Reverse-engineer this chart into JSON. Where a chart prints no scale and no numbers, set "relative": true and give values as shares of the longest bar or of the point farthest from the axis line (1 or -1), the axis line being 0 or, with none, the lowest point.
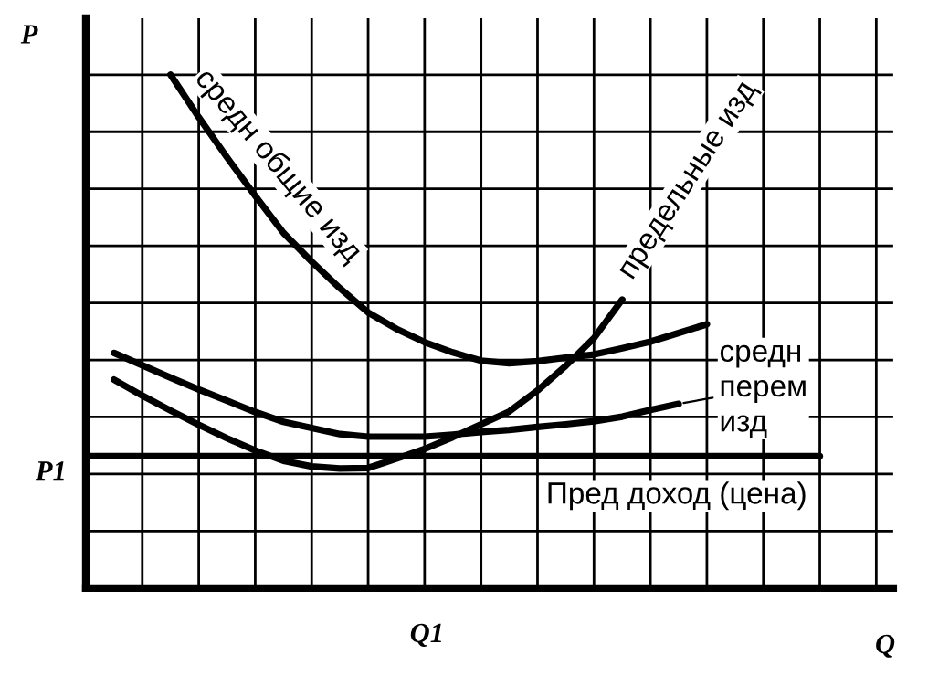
{
  "chart_data": {
    "type": "line",
    "relative": true,
    "xlabel": "Q",
    "ylabel": "P",
    "grid": true,
    "marker": "none",
    "line_style": "solid",
    "categories": [
      null,
      null,
      null,
      null,
      null,
      null,
      null,
      null,
      null,
      null,
      null,
      null,
      null,
      null,
      null,
      null,
      null,
      null,
      null,
      null,
      null,
      null,
      null,
      null,
      null,
      null,
      null
    ],
    "series": [
      {
        "name": "средн общие изд",
        "color": "#000000",
        "values": [
          null,
          null,
          null,
          1.0,
          0.917,
          0.839,
          0.764,
          0.692,
          0.636,
          0.584,
          0.537,
          0.505,
          0.479,
          0.459,
          0.443,
          0.438,
          0.442,
          0.449,
          0.455,
          0.467,
          0.48,
          0.497,
          0.514,
          null,
          null,
          null,
          null
        ]
      },
      {
        "name": "предельные изд",
        "color": "#000000",
        "values": [
          null,
          0.406,
          0.375,
          0.346,
          0.318,
          0.292,
          0.268,
          0.248,
          0.237,
          0.233,
          0.234,
          0.252,
          0.271,
          0.294,
          0.319,
          0.344,
          0.385,
          0.433,
          0.487,
          0.562,
          null,
          null,
          null,
          null,
          null,
          null,
          null
        ]
      },
      {
        "name": "средн\nперем\nизд",
        "color": "#000000",
        "values": [
          null,
          0.458,
          0.434,
          0.41,
          0.387,
          0.365,
          0.343,
          0.324,
          0.312,
          0.3,
          0.295,
          0.295,
          0.295,
          0.299,
          0.304,
          0.308,
          0.314,
          0.319,
          0.325,
          0.334,
          0.347,
          0.359,
          null,
          null,
          null,
          null,
          null
        ]
      },
      {
        "name": "Пред доход (цена)",
        "color": "#000000",
        "values": [
          0.257,
          0.257,
          0.257,
          0.257,
          0.257,
          0.257,
          0.257,
          0.257,
          0.257,
          0.257,
          0.257,
          0.257,
          0.257,
          0.257,
          0.257,
          0.257,
          0.257,
          0.257,
          0.257,
          0.257,
          0.257,
          0.257,
          0.257,
          0.257,
          0.257,
          0.257,
          0.257
        ]
      }
    ],
    "annotations": [
      "P1",
      "Q1"
    ]
  }
}
